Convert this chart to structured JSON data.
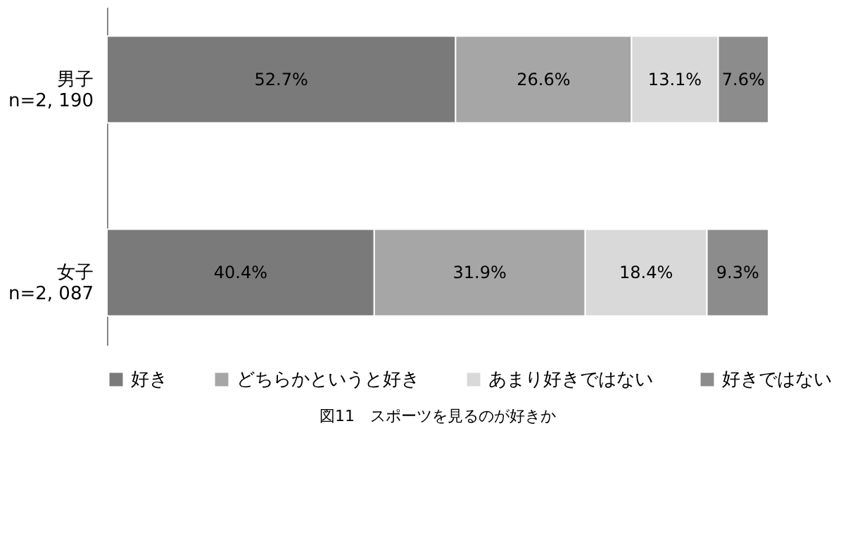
{
  "chart_data": {
    "type": "bar",
    "orientation": "horizontal",
    "stacked": true,
    "title": "図11　スポーツを見るのが好きか",
    "categories": [
      "男子\nn=2, 190",
      "女子\nn=2, 087"
    ],
    "series": [
      {
        "name": "好き",
        "color": "#7a7a7a",
        "values": [
          52.7,
          40.4
        ],
        "value_labels": [
          "52.7%",
          "40.4%"
        ]
      },
      {
        "name": "どちらかというと好き",
        "color": "#a6a6a6",
        "values": [
          26.6,
          31.9
        ],
        "value_labels": [
          "26.6%",
          "31.9%"
        ]
      },
      {
        "name": "あまり好きではない",
        "color": "#d9d9d9",
        "values": [
          13.1,
          18.4
        ],
        "value_labels": [
          "13.1%",
          "18.4%"
        ]
      },
      {
        "name": "好きではない",
        "color": "#8c8c8c",
        "values": [
          7.6,
          9.3
        ],
        "value_labels": [
          "7.6%",
          "9.3%"
        ]
      }
    ],
    "legend": "bottom",
    "tick_labels": "y"
  }
}
